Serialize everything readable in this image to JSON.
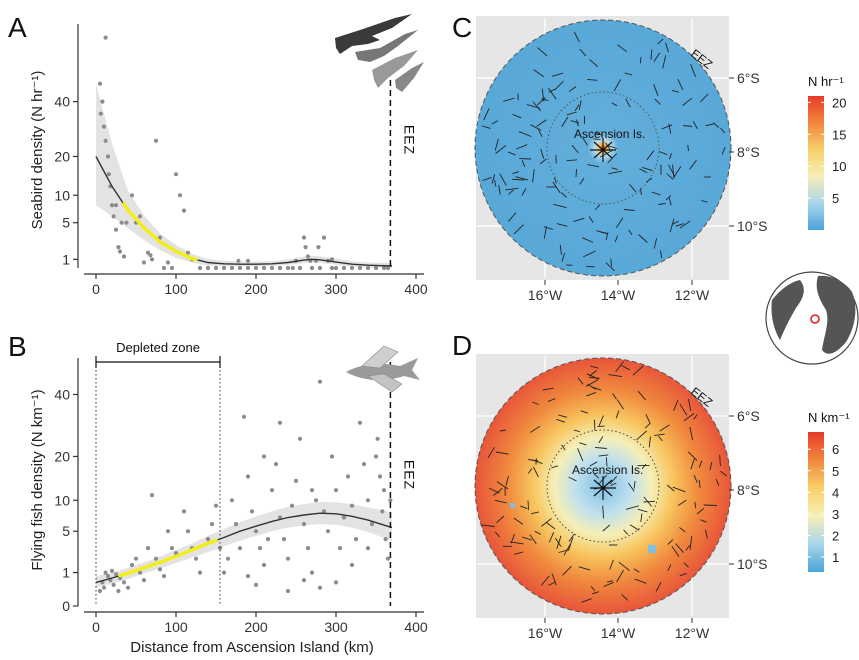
{
  "panels": {
    "A": "A",
    "B": "B",
    "C": "C",
    "D": "D"
  },
  "chart_data": [
    {
      "id": "A",
      "type": "scatter",
      "xlabel": "",
      "ylabel": "Seabird density (N hr⁻¹)",
      "xlim": [
        -15,
        410
      ],
      "x_ticks": [
        0,
        100,
        200,
        300,
        400
      ],
      "y_ticks": [
        1,
        5,
        10,
        20,
        40
      ],
      "y_scale": "sqrt-like transformed",
      "eez_label": "EEZ",
      "eez_x": 368,
      "points": [
        [
          5,
          48
        ],
        [
          8,
          40
        ],
        [
          10,
          30
        ],
        [
          12,
          25
        ],
        [
          15,
          20
        ],
        [
          18,
          12
        ],
        [
          20,
          8
        ],
        [
          22,
          6
        ],
        [
          25,
          4
        ],
        [
          28,
          2
        ],
        [
          30,
          1.6
        ],
        [
          35,
          1.2
        ],
        [
          45,
          10
        ],
        [
          50,
          5
        ],
        [
          55,
          6
        ],
        [
          60,
          0.8
        ],
        [
          65,
          1.5
        ],
        [
          75,
          25
        ],
        [
          80,
          3
        ],
        [
          85,
          0.5
        ],
        [
          95,
          0.5
        ],
        [
          100,
          15
        ],
        [
          105,
          10
        ],
        [
          110,
          7
        ],
        [
          115,
          1.5
        ],
        [
          120,
          1
        ],
        [
          130,
          0.5
        ],
        [
          140,
          0.5
        ],
        [
          150,
          0.5
        ],
        [
          160,
          0.5
        ],
        [
          170,
          0.5
        ],
        [
          180,
          0.5
        ],
        [
          190,
          0.5
        ],
        [
          200,
          0.5
        ],
        [
          210,
          0.5
        ],
        [
          220,
          0.5
        ],
        [
          230,
          0.5
        ],
        [
          240,
          0.5
        ],
        [
          250,
          0.9
        ],
        [
          255,
          0.5
        ],
        [
          260,
          3
        ],
        [
          262,
          2
        ],
        [
          265,
          1.2
        ],
        [
          268,
          0.9
        ],
        [
          270,
          0.5
        ],
        [
          275,
          0.9
        ],
        [
          280,
          0.5
        ],
        [
          285,
          3
        ],
        [
          290,
          0.9
        ],
        [
          295,
          0.5
        ],
        [
          300,
          0.5
        ],
        [
          310,
          0.5
        ],
        [
          320,
          0.5
        ],
        [
          330,
          0.5
        ],
        [
          340,
          0.5
        ],
        [
          350,
          0.5
        ],
        [
          360,
          0.5
        ],
        [
          365,
          0.5
        ],
        [
          12,
          72
        ],
        [
          6,
          35
        ],
        [
          16,
          15
        ],
        [
          25,
          8
        ],
        [
          32,
          5
        ],
        [
          38,
          5
        ],
        [
          68,
          1.3
        ],
        [
          70,
          1
        ],
        [
          90,
          0.8
        ],
        [
          178,
          0.9
        ],
        [
          190,
          0.9
        ],
        [
          230,
          0.5
        ],
        [
          246,
          0.5
        ],
        [
          278,
          2
        ],
        [
          295,
          1
        ]
      ],
      "fit": {
        "x": [
          0,
          20,
          40,
          60,
          80,
          100,
          120,
          140,
          160,
          180,
          200,
          220,
          240,
          260,
          270,
          280,
          300,
          320,
          340,
          370
        ],
        "y": [
          20,
          12,
          7,
          4.2,
          2.5,
          1.6,
          1.05,
          0.8,
          0.72,
          0.7,
          0.7,
          0.72,
          0.8,
          0.95,
          1.0,
          0.97,
          0.82,
          0.7,
          0.64,
          0.6
        ],
        "lo": [
          8,
          6,
          4.2,
          2.7,
          1.7,
          1.1,
          0.78,
          0.62,
          0.58,
          0.57,
          0.57,
          0.6,
          0.66,
          0.76,
          0.8,
          0.78,
          0.66,
          0.57,
          0.52,
          0.47
        ],
        "hi": [
          48,
          24,
          11,
          6.2,
          3.5,
          2.2,
          1.4,
          1.02,
          0.9,
          0.86,
          0.86,
          0.88,
          0.98,
          1.2,
          1.25,
          1.22,
          1.04,
          0.88,
          0.8,
          0.76
        ],
        "highlight": [
          35,
          125
        ]
      }
    },
    {
      "id": "B",
      "type": "scatter",
      "xlabel": "Distance from Ascension Island (km)",
      "ylabel": "Flying fish density (N km⁻¹)",
      "xlim": [
        -15,
        410
      ],
      "x_ticks": [
        0,
        100,
        200,
        300,
        400
      ],
      "y_ticks": [
        0,
        1,
        5,
        10,
        20,
        40
      ],
      "eez_label": "EEZ",
      "eez_x": 368,
      "zone_label": "Depleted zone",
      "zone": [
        0,
        155
      ],
      "points": [
        [
          5,
          0.2
        ],
        [
          8,
          0.5
        ],
        [
          10,
          0.3
        ],
        [
          12,
          1
        ],
        [
          15,
          0.8
        ],
        [
          18,
          0.6
        ],
        [
          20,
          1.1
        ],
        [
          22,
          0.4
        ],
        [
          25,
          0.9
        ],
        [
          28,
          0.2
        ],
        [
          30,
          0.7
        ],
        [
          35,
          0.5
        ],
        [
          40,
          0.3
        ],
        [
          45,
          1.5
        ],
        [
          50,
          2
        ],
        [
          55,
          1
        ],
        [
          60,
          0.6
        ],
        [
          65,
          3
        ],
        [
          70,
          11
        ],
        [
          75,
          2
        ],
        [
          80,
          1.2
        ],
        [
          85,
          0.8
        ],
        [
          90,
          5
        ],
        [
          95,
          3
        ],
        [
          100,
          2.5
        ],
        [
          110,
          8
        ],
        [
          115,
          5
        ],
        [
          120,
          3
        ],
        [
          125,
          2
        ],
        [
          130,
          1
        ],
        [
          140,
          4
        ],
        [
          145,
          6
        ],
        [
          150,
          9
        ],
        [
          155,
          3
        ],
        [
          160,
          1
        ],
        [
          165,
          2
        ],
        [
          170,
          10
        ],
        [
          175,
          6
        ],
        [
          180,
          3
        ],
        [
          185,
          32
        ],
        [
          190,
          15
        ],
        [
          195,
          8
        ],
        [
          200,
          5
        ],
        [
          205,
          3
        ],
        [
          210,
          1.5
        ],
        [
          215,
          4
        ],
        [
          220,
          12
        ],
        [
          225,
          18
        ],
        [
          230,
          7
        ],
        [
          235,
          4
        ],
        [
          240,
          2
        ],
        [
          245,
          9
        ],
        [
          250,
          14
        ],
        [
          255,
          25
        ],
        [
          260,
          6
        ],
        [
          265,
          3
        ],
        [
          270,
          1
        ],
        [
          275,
          10
        ],
        [
          280,
          45
        ],
        [
          285,
          8
        ],
        [
          290,
          5
        ],
        [
          295,
          20
        ],
        [
          300,
          12
        ],
        [
          305,
          3
        ],
        [
          310,
          7
        ],
        [
          315,
          15
        ],
        [
          320,
          9
        ],
        [
          325,
          4
        ],
        [
          330,
          30
        ],
        [
          335,
          18
        ],
        [
          340,
          10
        ],
        [
          345,
          6
        ],
        [
          350,
          20
        ],
        [
          352,
          25
        ],
        [
          355,
          15
        ],
        [
          358,
          8
        ],
        [
          360,
          12
        ],
        [
          362,
          4
        ],
        [
          365,
          2
        ],
        [
          368,
          10
        ],
        [
          240,
          0.2
        ],
        [
          280,
          0.3
        ],
        [
          300,
          0.5
        ],
        [
          200,
          0.4
        ],
        [
          190,
          0.8
        ],
        [
          260,
          0.6
        ],
        [
          320,
          1.5
        ],
        [
          340,
          3
        ],
        [
          210,
          20
        ],
        [
          230,
          30
        ],
        [
          270,
          12
        ]
      ],
      "fit": {
        "x": [
          0,
          20,
          40,
          60,
          80,
          100,
          120,
          140,
          160,
          180,
          200,
          220,
          240,
          260,
          280,
          300,
          320,
          340,
          370
        ],
        "y": [
          0.5,
          0.7,
          0.95,
          1.3,
          1.7,
          2.2,
          2.8,
          3.5,
          4.2,
          5,
          5.7,
          6.4,
          7,
          7.4,
          7.7,
          7.6,
          7.2,
          6.6,
          5.5
        ],
        "lo": [
          0.3,
          0.45,
          0.65,
          0.95,
          1.25,
          1.65,
          2.1,
          2.6,
          3.2,
          3.8,
          4.4,
          5,
          5.5,
          5.8,
          6,
          5.9,
          5.5,
          4.9,
          3.8
        ],
        "hi": [
          0.8,
          1.0,
          1.3,
          1.7,
          2.2,
          2.8,
          3.5,
          4.4,
          5.3,
          6.3,
          7.2,
          8,
          8.8,
          9.3,
          9.7,
          9.6,
          9.3,
          8.7,
          7.8
        ],
        "highlight": [
          30,
          150
        ]
      }
    },
    {
      "id": "C",
      "type": "heatmap",
      "legend_title": "N hr⁻¹",
      "legend_ticks": [
        5,
        10,
        15,
        20
      ],
      "legend_range": [
        0,
        21
      ],
      "lon_ticks": [
        "16°W",
        "14°W",
        "12°W"
      ],
      "lat_ticks": [
        "6°S",
        "8°S",
        "10°S"
      ],
      "island_label": "Ascension Is.",
      "eez_label": "EEZ"
    },
    {
      "id": "D",
      "type": "heatmap",
      "legend_title": "N km⁻¹",
      "legend_ticks": [
        1,
        2,
        3,
        4,
        5,
        6
      ],
      "legend_range": [
        0.3,
        6.8
      ],
      "lon_ticks": [
        "16°W",
        "14°W",
        "12°W"
      ],
      "lat_ticks": [
        "6°S",
        "8°S",
        "10°S"
      ],
      "island_label": "Ascension Is.",
      "eez_label": "EEZ"
    }
  ],
  "colors": {
    "points": "#8c8c8c",
    "fit": "#333333",
    "ci": "#d9d9d9",
    "highlight": "#f2ee1a",
    "map_bg": "#e6e6e6",
    "locator_land": "#555555",
    "locator_ocean": "#ffffff",
    "locator_marker": "#e02020"
  }
}
